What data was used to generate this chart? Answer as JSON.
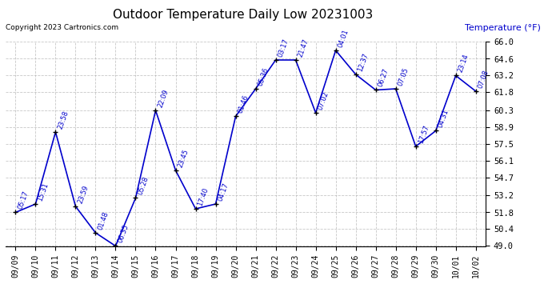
{
  "title": "Outdoor Temperature Daily Low 20231003",
  "copyright": "Copyright 2023 Cartronics.com",
  "ylabel": "Temperature (°F)",
  "ylim": [
    49.0,
    66.0
  ],
  "yticks": [
    49.0,
    50.4,
    51.8,
    53.2,
    54.7,
    56.1,
    57.5,
    58.9,
    60.3,
    61.8,
    63.2,
    64.6,
    66.0
  ],
  "points": [
    [
      "09/09",
      51.8,
      "05:17"
    ],
    [
      "09/10",
      52.5,
      "15:31"
    ],
    [
      "09/11",
      58.5,
      "23:58"
    ],
    [
      "09/12",
      52.3,
      "23:59"
    ],
    [
      "09/13",
      50.1,
      "01:48"
    ],
    [
      "09/14",
      49.0,
      "06:35"
    ],
    [
      "09/15",
      53.0,
      "05:28"
    ],
    [
      "09/16",
      60.3,
      "22:09"
    ],
    [
      "09/17",
      55.3,
      "23:45"
    ],
    [
      "09/18",
      52.1,
      "17:40"
    ],
    [
      "09/19",
      52.5,
      "04:17"
    ],
    [
      "09/20",
      59.8,
      "01:46"
    ],
    [
      "09/21",
      62.1,
      "05:36"
    ],
    [
      "09/22",
      64.5,
      "03:17"
    ],
    [
      "09/23",
      64.5,
      "21:47"
    ],
    [
      "09/24",
      60.1,
      "07:02"
    ],
    [
      "09/25",
      65.3,
      "04:01"
    ],
    [
      "09/26",
      63.3,
      "12:37"
    ],
    [
      "09/27",
      62.0,
      "06:27"
    ],
    [
      "09/28",
      62.1,
      "07:05"
    ],
    [
      "09/29",
      57.3,
      "17:57"
    ],
    [
      "09/30",
      58.6,
      "04:31"
    ],
    [
      "10/01",
      63.2,
      "23:14"
    ],
    [
      "10/02",
      61.9,
      "07:08"
    ]
  ],
  "line_color": "#0000cc",
  "marker_color": "#000000",
  "annotation_color": "#0000cc",
  "title_color": "#000000",
  "ylabel_color": "#0000cc",
  "bg_color": "#ffffff",
  "grid_color": "#b0b0b0",
  "figwidth": 6.9,
  "figheight": 3.75,
  "dpi": 100
}
